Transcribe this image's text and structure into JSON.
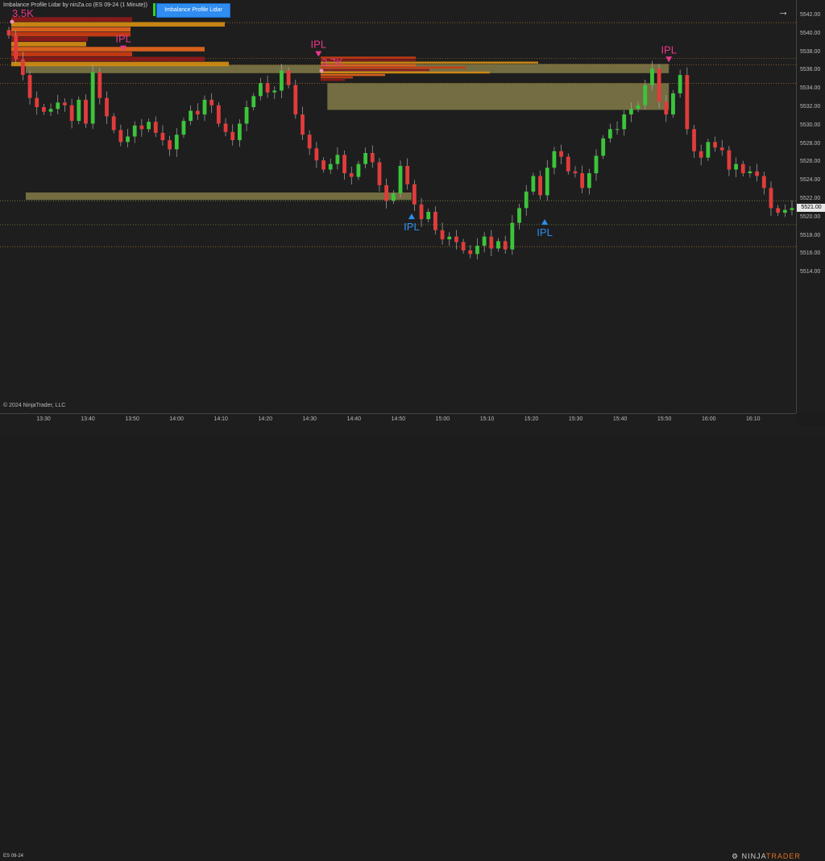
{
  "header": {
    "title": "Imbalance Profile Lidar by ninZa.co (ES 09-24 (1 Minute))",
    "button_label": "Imbalance Profile Lidar"
  },
  "footer": {
    "copyright": "© 2024 NinjaTrader, LLC",
    "instrument": "ES 09-24",
    "logo_prefix": "⚙ NINJA",
    "logo_suffix": "TRADER"
  },
  "colors": {
    "up_candle": "#3cc43c",
    "down_candle": "#e03c3c",
    "zone_fill": "#7d7646",
    "bid_ask_bars": [
      "#8b1a1a",
      "#c83c14",
      "#e0641e",
      "#d08a14"
    ],
    "ipl_top": "#e8388a",
    "ipl_bottom": "#2f8cf0"
  },
  "annotations": {
    "vol_1": "3.5K",
    "vol_2": "3.7K",
    "ipl_labels": [
      "IPL",
      "IPL",
      "IPL",
      "IPL",
      "IPL"
    ]
  },
  "price_axis": {
    "labels": [
      "5542.00",
      "5540.00",
      "5538.00",
      "5536.00",
      "5534.00",
      "5532.00",
      "5530.00",
      "5528.00",
      "5526.00",
      "5524.00",
      "5522.00",
      "5520.00",
      "5518.00",
      "5516.00",
      "5514.00"
    ],
    "current_price": "5521.00"
  },
  "time_axis": {
    "labels": [
      "13:30",
      "13:40",
      "13:50",
      "14:00",
      "14:10",
      "14:20",
      "14:30",
      "14:40",
      "14:50",
      "15:00",
      "15:10",
      "15:20",
      "15:30",
      "15:40",
      "15:50",
      "16:00",
      "16:10"
    ]
  },
  "chart_data": {
    "type": "candlestick",
    "instrument": "ES 09-24",
    "interval": "1 Minute",
    "ylim": [
      5513.5,
      5543.5
    ],
    "y_ticks": [
      5542,
      5540,
      5538,
      5536,
      5534,
      5532,
      5530,
      5528,
      5526,
      5524,
      5522,
      5520,
      5518,
      5516,
      5514
    ],
    "x_ticks": [
      "13:30",
      "13:40",
      "13:50",
      "14:00",
      "14:10",
      "14:20",
      "14:30",
      "14:40",
      "14:50",
      "15:00",
      "15:10",
      "15:20",
      "15:30",
      "15:40",
      "15:50",
      "16:00",
      "16:10"
    ],
    "current_price": 5521.0,
    "close_path": [
      5539.8,
      5537.2,
      5535.5,
      5533.0,
      5532.0,
      5531.5,
      5531.8,
      5532.5,
      5532.2,
      5530.5,
      5532.8,
      5530.2,
      5535.8,
      5533.0,
      5531.0,
      5529.5,
      5528.2,
      5528.8,
      5530.0,
      5529.6,
      5530.4,
      5529.2,
      5528.4,
      5527.4,
      5529.0,
      5530.5,
      5531.6,
      5531.2,
      5532.8,
      5532.2,
      5530.2,
      5529.3,
      5528.4,
      5530.2,
      5532.0,
      5533.2,
      5534.6,
      5533.6,
      5533.8,
      5536.0,
      5534.4,
      5531.2,
      5529.0,
      5527.5,
      5526.2,
      5525.2,
      5525.8,
      5526.8,
      5524.8,
      5524.4,
      5525.8,
      5527.0,
      5526.0,
      5523.5,
      5521.8,
      5522.6,
      5525.6,
      5523.6,
      5521.4,
      5519.8,
      5520.6,
      5518.6,
      5517.6,
      5517.9,
      5517.3,
      5516.4,
      5516.0,
      5516.9,
      5517.9,
      5516.6,
      5517.4,
      5516.5,
      5519.4,
      5521.0,
      5522.8,
      5524.5,
      5522.4,
      5525.4,
      5527.2,
      5526.6,
      5525.0,
      5524.8,
      5523.2,
      5524.8,
      5526.7,
      5528.6,
      5529.6,
      5529.6,
      5531.2,
      5531.8,
      5532.2,
      5534.4,
      5536.2,
      5532.6,
      5531.2,
      5533.5,
      5535.5,
      5529.6,
      5527.2,
      5526.5,
      5528.2,
      5527.6,
      5527.3,
      5525.2,
      5525.8,
      5524.8,
      5525.0,
      5524.5,
      5523.2,
      5521.0,
      5520.5,
      5520.8,
      5521.0
    ],
    "horizontal_levels": [
      5541.2,
      5537.3,
      5536.6,
      5534.6,
      5521.8,
      5519.2,
      5516.8
    ],
    "imbalance_zones": [
      {
        "from_time": "13:26",
        "to_time": "14:35",
        "low": 5535.7,
        "high": 5536.6
      },
      {
        "from_time": "14:34",
        "to_time": "15:51",
        "low": 5535.7,
        "high": 5536.7
      },
      {
        "from_time": "14:34",
        "to_time": "15:51",
        "low": 5531.7,
        "high": 5534.6
      },
      {
        "from_time": "13:26",
        "to_time": "14:53",
        "low": 5521.9,
        "high": 5522.7
      }
    ],
    "volume_profiles": [
      {
        "label": "3.5K",
        "high": 5541.8,
        "low": 5536.4,
        "levels": 10
      },
      {
        "label": "3.7K",
        "high": 5537.5,
        "low": 5534.8,
        "levels": 10
      }
    ],
    "ipl_markers": [
      {
        "label": "IPL",
        "time": "13:48",
        "direction": "down",
        "price": 5538.0
      },
      {
        "label": "IPL",
        "time": "14:32",
        "direction": "down",
        "price": 5537.4
      },
      {
        "label": "IPL",
        "time": "15:51",
        "direction": "down",
        "price": 5536.8
      },
      {
        "label": "IPL",
        "time": "14:53",
        "direction": "up",
        "price": 5520.5
      },
      {
        "label": "IPL",
        "time": "15:23",
        "direction": "up",
        "price": 5519.9
      }
    ]
  }
}
